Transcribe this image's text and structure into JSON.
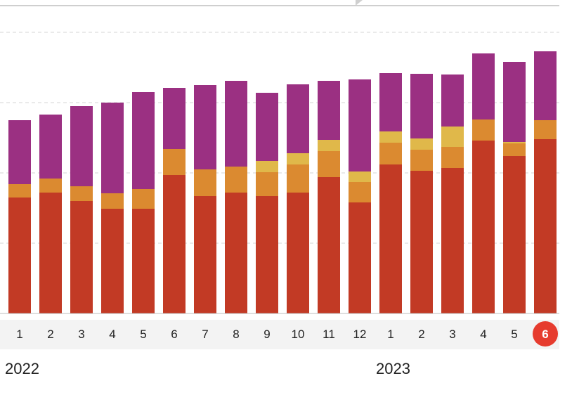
{
  "colors": {
    "series": [
      "#c23a25",
      "#db8a30",
      "#e0b84a",
      "#9b3082"
    ],
    "grid": "#d6d6d6",
    "axis_band": "#f3f3f3",
    "active_badge": "#e63b2e"
  },
  "years": [
    "2022",
    "2023"
  ],
  "active_index": 17,
  "chart_data": {
    "type": "bar",
    "stacked": true,
    "categories": [
      "1",
      "2",
      "3",
      "4",
      "5",
      "6",
      "7",
      "8",
      "9",
      "10",
      "11",
      "12",
      "1",
      "2",
      "3",
      "4",
      "5",
      "6"
    ],
    "ylim": [
      0,
      400
    ],
    "grid": true,
    "series": [
      {
        "values": [
          165,
          172,
          160,
          149,
          149,
          197,
          167,
          172,
          167,
          172,
          194,
          158,
          212,
          203,
          207,
          246,
          224,
          248
        ]
      },
      {
        "values": [
          19,
          20,
          21,
          22,
          28,
          37,
          38,
          37,
          34,
          40,
          37,
          29,
          31,
          30,
          30,
          30,
          18,
          27
        ]
      },
      {
        "values": [
          0,
          0,
          0,
          0,
          0,
          0,
          0,
          0,
          16,
          16,
          16,
          15,
          16,
          16,
          29,
          0,
          2,
          0
        ]
      },
      {
        "values": [
          91,
          91,
          114,
          129,
          138,
          87,
          120,
          122,
          97,
          98,
          84,
          131,
          83,
          92,
          74,
          94,
          114,
          98
        ]
      }
    ]
  }
}
